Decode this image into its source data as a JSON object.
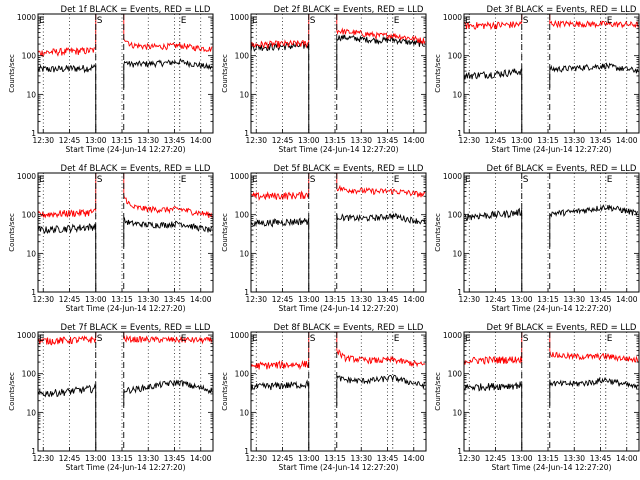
{
  "figure": {
    "time_label_prefix": "Start Time",
    "start_time": "(24-Jun-14 12:27:20)",
    "ylabel": "Counts/sec",
    "title_suffix": "BLACK = Events, RED = LLD",
    "marker_labels": [
      "E",
      "S",
      "E"
    ]
  },
  "colors": {
    "events": "#000000",
    "lld": "#ff0000",
    "axis": "#000000",
    "background": "#ffffff"
  },
  "chart_data": [
    {
      "type": "line",
      "title": "Det 1f BLACK = Events, RED = LLD",
      "xlabel": "Start Time (24-Jun-14 12:27:20)",
      "ylabel": "Counts/sec",
      "xlim": [
        "12:27",
        "14:07"
      ],
      "ylim": [
        1,
        1200
      ],
      "yscale": "log",
      "xticks": [
        "12:30",
        "12:45",
        "13:00",
        "13:15",
        "13:30",
        "13:45",
        "14:00"
      ],
      "yticks": [
        "1",
        "10",
        "100",
        "1000"
      ],
      "markers": [
        {
          "label": "E",
          "time": "12:27",
          "style": "dotted"
        },
        {
          "label": "S",
          "time": "13:00",
          "style": "dashed"
        },
        {
          "label": "E",
          "time": "13:48",
          "style": "dotted"
        },
        {
          "label": "",
          "time": "13:16",
          "style": "dashed"
        }
      ],
      "series": [
        {
          "name": "Events",
          "color": "#000000",
          "x": [
            "12:27",
            "12:35",
            "12:45",
            "12:55",
            "13:00",
            "13:16",
            "13:20",
            "13:30",
            "13:40",
            "13:48",
            "13:55",
            "14:05"
          ],
          "y": [
            45,
            45,
            47,
            48,
            50,
            70,
            60,
            62,
            65,
            70,
            62,
            50
          ]
        },
        {
          "name": "LLD",
          "color": "#ff0000",
          "x": [
            "12:27",
            "12:35",
            "12:45",
            "12:55",
            "13:00",
            "13:16",
            "13:20",
            "13:30",
            "13:40",
            "13:48",
            "13:55",
            "14:05"
          ],
          "y": [
            120,
            125,
            130,
            135,
            140,
            300,
            190,
            170,
            175,
            185,
            165,
            150
          ]
        }
      ]
    },
    {
      "type": "line",
      "title": "Det 2f BLACK = Events, RED = LLD",
      "xlabel": "Start Time (24-Jun-14 12:27:20)",
      "ylabel": "Counts/sec",
      "xlim": [
        "12:27",
        "14:07"
      ],
      "ylim": [
        1,
        1200
      ],
      "yscale": "log",
      "xticks": [
        "12:30",
        "12:45",
        "13:00",
        "13:15",
        "13:30",
        "13:45",
        "14:00"
      ],
      "yticks": [
        "1",
        "10",
        "100",
        "1000"
      ],
      "markers": [
        {
          "label": "E",
          "time": "12:27",
          "style": "dotted"
        },
        {
          "label": "S",
          "time": "13:00",
          "style": "dashed"
        },
        {
          "label": "E",
          "time": "13:48",
          "style": "dotted"
        },
        {
          "label": "",
          "time": "13:16",
          "style": "dashed"
        }
      ],
      "series": [
        {
          "name": "Events",
          "color": "#000000",
          "x": [
            "12:27",
            "12:35",
            "12:45",
            "12:55",
            "13:00",
            "13:16",
            "13:20",
            "13:30",
            "13:40",
            "13:48",
            "13:55",
            "14:05"
          ],
          "y": [
            170,
            170,
            175,
            180,
            185,
            300,
            300,
            270,
            250,
            260,
            230,
            200
          ]
        },
        {
          "name": "LLD",
          "color": "#ff0000",
          "x": [
            "12:27",
            "12:35",
            "12:45",
            "12:55",
            "13:00",
            "13:16",
            "13:20",
            "13:30",
            "13:40",
            "13:48",
            "13:55",
            "14:05"
          ],
          "y": [
            190,
            195,
            200,
            205,
            210,
            450,
            420,
            380,
            330,
            340,
            300,
            250
          ]
        }
      ]
    },
    {
      "type": "line",
      "title": "Det 3f BLACK = Events, RED = LLD",
      "xlabel": "Start Time (24-Jun-14 12:27:20)",
      "ylabel": "Counts/sec",
      "xlim": [
        "12:27",
        "14:07"
      ],
      "ylim": [
        1,
        1200
      ],
      "yscale": "log",
      "xticks": [
        "12:30",
        "12:45",
        "13:00",
        "13:15",
        "13:30",
        "13:45",
        "14:00"
      ],
      "yticks": [
        "1",
        "10",
        "100",
        "1000"
      ],
      "markers": [
        {
          "label": "E",
          "time": "12:27",
          "style": "dotted"
        },
        {
          "label": "S",
          "time": "13:00",
          "style": "dashed"
        },
        {
          "label": "E",
          "time": "13:48",
          "style": "dotted"
        },
        {
          "label": "",
          "time": "13:16",
          "style": "dashed"
        }
      ],
      "series": [
        {
          "name": "Events",
          "color": "#000000",
          "x": [
            "12:27",
            "12:35",
            "12:45",
            "12:55",
            "13:00",
            "13:16",
            "13:20",
            "13:30",
            "13:40",
            "13:48",
            "13:55",
            "14:05"
          ],
          "y": [
            30,
            32,
            34,
            38,
            40,
            45,
            45,
            48,
            52,
            55,
            48,
            42
          ]
        },
        {
          "name": "LLD",
          "color": "#ff0000",
          "x": [
            "12:27",
            "12:35",
            "12:45",
            "12:55",
            "13:00",
            "13:16",
            "13:20",
            "13:30",
            "13:40",
            "13:48",
            "13:55",
            "14:05"
          ],
          "y": [
            600,
            610,
            620,
            640,
            650,
            700,
            680,
            670,
            660,
            660,
            650,
            640
          ]
        }
      ]
    },
    {
      "type": "line",
      "title": "Det 4f BLACK = Events, RED = LLD",
      "xlabel": "Start Time (24-Jun-14 12:27:20)",
      "ylabel": "Counts/sec",
      "xlim": [
        "12:27",
        "14:07"
      ],
      "ylim": [
        1,
        1200
      ],
      "yscale": "log",
      "xticks": [
        "12:30",
        "12:45",
        "13:00",
        "13:15",
        "13:30",
        "13:45",
        "14:00"
      ],
      "yticks": [
        "1",
        "10",
        "100",
        "1000"
      ],
      "markers": [
        {
          "label": "E",
          "time": "12:27",
          "style": "dotted"
        },
        {
          "label": "S",
          "time": "13:00",
          "style": "dashed"
        },
        {
          "label": "E",
          "time": "13:48",
          "style": "dotted"
        },
        {
          "label": "",
          "time": "13:16",
          "style": "dashed"
        }
      ],
      "series": [
        {
          "name": "Events",
          "color": "#000000",
          "x": [
            "12:27",
            "12:35",
            "12:45",
            "12:55",
            "13:00",
            "13:16",
            "13:20",
            "13:30",
            "13:40",
            "13:48",
            "13:55",
            "14:05"
          ],
          "y": [
            40,
            42,
            45,
            48,
            50,
            70,
            60,
            55,
            55,
            60,
            50,
            40
          ]
        },
        {
          "name": "LLD",
          "color": "#ff0000",
          "x": [
            "12:27",
            "12:35",
            "12:45",
            "12:55",
            "13:00",
            "13:16",
            "13:20",
            "13:30",
            "13:40",
            "13:48",
            "13:55",
            "14:05"
          ],
          "y": [
            100,
            105,
            110,
            115,
            120,
            300,
            160,
            140,
            135,
            140,
            120,
            100
          ]
        }
      ]
    },
    {
      "type": "line",
      "title": "Det 5f BLACK = Events, RED = LLD",
      "xlabel": "Start Time (24-Jun-14 12:27:20)",
      "ylabel": "Counts/sec",
      "xlim": [
        "12:27",
        "14:07"
      ],
      "ylim": [
        1,
        1200
      ],
      "yscale": "log",
      "xticks": [
        "12:30",
        "12:45",
        "13:00",
        "13:15",
        "13:30",
        "13:45",
        "14:00"
      ],
      "yticks": [
        "1",
        "10",
        "100",
        "1000"
      ],
      "markers": [
        {
          "label": "E",
          "time": "12:27",
          "style": "dotted"
        },
        {
          "label": "S",
          "time": "13:00",
          "style": "dashed"
        },
        {
          "label": "E",
          "time": "13:48",
          "style": "dotted"
        },
        {
          "label": "",
          "time": "13:16",
          "style": "dashed"
        }
      ],
      "series": [
        {
          "name": "Events",
          "color": "#000000",
          "x": [
            "12:27",
            "12:35",
            "12:45",
            "12:55",
            "13:00",
            "13:16",
            "13:20",
            "13:30",
            "13:40",
            "13:48",
            "13:55",
            "14:05"
          ],
          "y": [
            60,
            62,
            65,
            68,
            70,
            90,
            85,
            80,
            85,
            95,
            80,
            65
          ]
        },
        {
          "name": "LLD",
          "color": "#ff0000",
          "x": [
            "12:27",
            "12:35",
            "12:45",
            "12:55",
            "13:00",
            "13:16",
            "13:20",
            "13:30",
            "13:40",
            "13:48",
            "13:55",
            "14:05"
          ],
          "y": [
            300,
            305,
            310,
            320,
            330,
            500,
            450,
            420,
            400,
            410,
            380,
            330
          ]
        }
      ]
    },
    {
      "type": "line",
      "title": "Det 6f BLACK = Events, RED = LLD",
      "xlabel": "Start Time (24-Jun-14 12:27:20)",
      "ylabel": "Counts/sec",
      "xlim": [
        "12:27",
        "14:07"
      ],
      "ylim": [
        1,
        1200
      ],
      "yscale": "log",
      "xticks": [
        "12:30",
        "12:45",
        "13:00",
        "13:15",
        "13:30",
        "13:45",
        "14:00"
      ],
      "yticks": [
        "1",
        "10",
        "100",
        "1000"
      ],
      "markers": [
        {
          "label": "E",
          "time": "12:27",
          "style": "dotted"
        },
        {
          "label": "S",
          "time": "13:00",
          "style": "dashed"
        },
        {
          "label": "E",
          "time": "13:48",
          "style": "dotted"
        },
        {
          "label": "",
          "time": "13:16",
          "style": "dashed"
        }
      ],
      "series": [
        {
          "name": "Events",
          "color": "#000000",
          "x": [
            "12:27",
            "12:35",
            "12:45",
            "12:55",
            "13:00",
            "13:16",
            "13:20",
            "13:30",
            "13:40",
            "13:48",
            "13:55",
            "14:05"
          ],
          "y": [
            90,
            95,
            100,
            110,
            120,
            110,
            110,
            120,
            140,
            160,
            140,
            110
          ]
        },
        {
          "name": "LLD",
          "color": "#ff0000",
          "x": [],
          "y": []
        }
      ]
    },
    {
      "type": "line",
      "title": "Det 7f BLACK = Events, RED = LLD",
      "xlabel": "Start Time (24-Jun-14 12:27:20)",
      "ylabel": "Counts/sec",
      "xlim": [
        "12:27",
        "14:07"
      ],
      "ylim": [
        1,
        1200
      ],
      "yscale": "log",
      "xticks": [
        "12:30",
        "12:45",
        "13:00",
        "13:15",
        "13:30",
        "13:45",
        "14:00"
      ],
      "yticks": [
        "1",
        "10",
        "100",
        "1000"
      ],
      "markers": [
        {
          "label": "E",
          "time": "12:27",
          "style": "dotted"
        },
        {
          "label": "S",
          "time": "13:00",
          "style": "dashed"
        },
        {
          "label": "E",
          "time": "13:48",
          "style": "dotted"
        },
        {
          "label": "",
          "time": "13:16",
          "style": "dashed"
        }
      ],
      "series": [
        {
          "name": "Events",
          "color": "#000000",
          "x": [
            "12:27",
            "12:35",
            "12:45",
            "12:55",
            "13:00",
            "13:16",
            "13:20",
            "13:30",
            "13:40",
            "13:48",
            "13:55",
            "14:05"
          ],
          "y": [
            30,
            32,
            35,
            40,
            42,
            38,
            38,
            45,
            55,
            60,
            48,
            38
          ]
        },
        {
          "name": "LLD",
          "color": "#ff0000",
          "x": [
            "12:27",
            "12:35",
            "12:45",
            "12:55",
            "13:00",
            "13:16",
            "13:20",
            "13:30",
            "13:40",
            "13:48",
            "13:55",
            "14:05"
          ],
          "y": [
            700,
            720,
            740,
            760,
            780,
            800,
            780,
            770,
            760,
            760,
            750,
            740
          ]
        }
      ]
    },
    {
      "type": "line",
      "title": "Det 8f BLACK = Events, RED = LLD",
      "xlabel": "Start Time (24-Jun-14 12:27:20)",
      "ylabel": "Counts/sec",
      "xlim": [
        "12:27",
        "14:07"
      ],
      "ylim": [
        1,
        1200
      ],
      "yscale": "log",
      "xticks": [
        "12:30",
        "12:45",
        "13:00",
        "13:15",
        "13:30",
        "13:45",
        "14:00"
      ],
      "yticks": [
        "1",
        "10",
        "100",
        "1000"
      ],
      "markers": [
        {
          "label": "E",
          "time": "12:27",
          "style": "dotted"
        },
        {
          "label": "S",
          "time": "13:00",
          "style": "dashed"
        },
        {
          "label": "E",
          "time": "13:48",
          "style": "dotted"
        },
        {
          "label": "",
          "time": "13:16",
          "style": "dashed"
        }
      ],
      "series": [
        {
          "name": "Events",
          "color": "#000000",
          "x": [
            "12:27",
            "12:35",
            "12:45",
            "12:55",
            "13:00",
            "13:16",
            "13:20",
            "13:30",
            "13:40",
            "13:48",
            "13:55",
            "14:05"
          ],
          "y": [
            45,
            47,
            50,
            52,
            55,
            80,
            70,
            65,
            70,
            80,
            65,
            50
          ]
        },
        {
          "name": "LLD",
          "color": "#ff0000",
          "x": [
            "12:27",
            "12:35",
            "12:45",
            "12:55",
            "13:00",
            "13:16",
            "13:20",
            "13:30",
            "13:40",
            "13:48",
            "13:55",
            "14:05"
          ],
          "y": [
            160,
            165,
            170,
            175,
            180,
            400,
            260,
            230,
            220,
            230,
            200,
            170
          ]
        }
      ]
    },
    {
      "type": "line",
      "title": "Det 9f BLACK = Events, RED = LLD",
      "xlabel": "Start Time (24-Jun-14 12:27:20)",
      "ylabel": "Counts/sec",
      "xlim": [
        "12:27",
        "14:07"
      ],
      "ylim": [
        1,
        1200
      ],
      "yscale": "log",
      "xticks": [
        "12:30",
        "12:45",
        "13:00",
        "13:15",
        "13:30",
        "13:45",
        "14:00"
      ],
      "yticks": [
        "1",
        "10",
        "100",
        "1000"
      ],
      "markers": [
        {
          "label": "E",
          "time": "12:27",
          "style": "dotted"
        },
        {
          "label": "S",
          "time": "13:00",
          "style": "dashed"
        },
        {
          "label": "E",
          "time": "13:48",
          "style": "dotted"
        },
        {
          "label": "",
          "time": "13:16",
          "style": "dashed"
        }
      ],
      "series": [
        {
          "name": "Events",
          "color": "#000000",
          "x": [
            "12:27",
            "12:35",
            "12:45",
            "12:55",
            "13:00",
            "13:16",
            "13:20",
            "13:30",
            "13:40",
            "13:48",
            "13:55",
            "14:05"
          ],
          "y": [
            45,
            46,
            48,
            50,
            52,
            60,
            55,
            55,
            60,
            70,
            58,
            45
          ]
        },
        {
          "name": "LLD",
          "color": "#ff0000",
          "x": [
            "12:27",
            "12:35",
            "12:45",
            "12:55",
            "13:00",
            "13:16",
            "13:20",
            "13:30",
            "13:40",
            "13:48",
            "13:55",
            "14:05"
          ],
          "y": [
            220,
            225,
            230,
            235,
            240,
            350,
            300,
            280,
            275,
            285,
            260,
            230
          ]
        }
      ]
    }
  ]
}
